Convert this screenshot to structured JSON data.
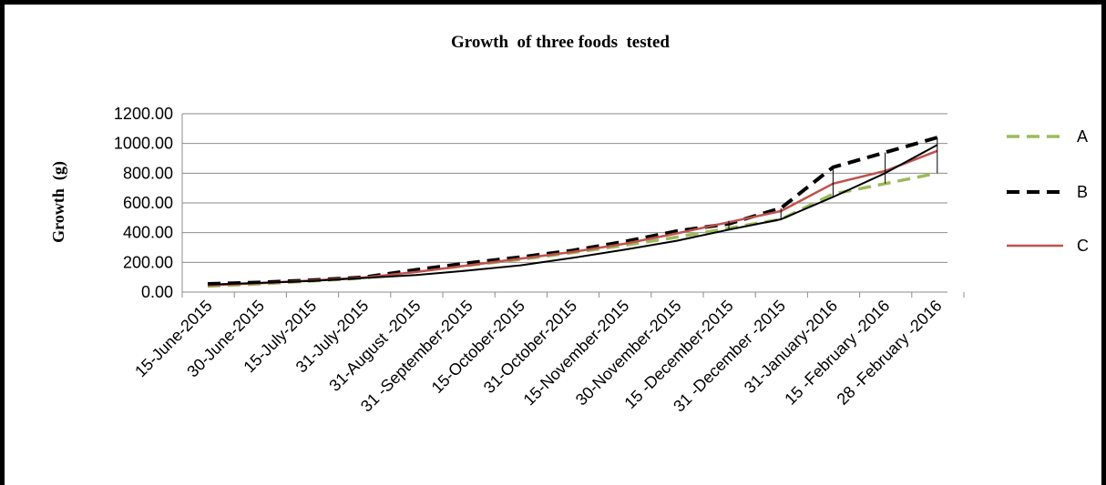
{
  "chart_data": {
    "type": "line",
    "title": "Growth  of three foods  tested",
    "xlabel": "",
    "ylabel": "Growth  (g)",
    "ylim": [
      0,
      1200
    ],
    "yticks": [
      "0.00",
      "200.00",
      "400.00",
      "600.00",
      "800.00",
      "1000.00",
      "1200.00"
    ],
    "grid": true,
    "legend_position": "right",
    "categories": [
      "15-June-2015",
      "30-June-2015",
      "15-July-2015",
      "31-July-2015",
      "31-August -2015",
      "31 -September-2015",
      "15-October-2015",
      "31-October-2015",
      "15-November-2015",
      "30-November-2015",
      "15 -December-2015",
      "31 -December -2015",
      "31-January-2016",
      "15 -February -2016",
      "28 -February -2016"
    ],
    "series": [
      {
        "name": "A",
        "color": "#9BBB59",
        "dash": "dashed",
        "values": [
          40,
          55,
          75,
          95,
          140,
          180,
          220,
          265,
          315,
          370,
          430,
          490,
          660,
          730,
          800
        ]
      },
      {
        "name": "B",
        "color": "#000000",
        "dash": "dashed",
        "values": [
          55,
          65,
          80,
          100,
          150,
          195,
          235,
          280,
          340,
          410,
          460,
          565,
          840,
          940,
          1040
        ]
      },
      {
        "name": "C",
        "color": "#C0504D",
        "dash": "solid",
        "values": [
          45,
          60,
          78,
          98,
          135,
          180,
          225,
          270,
          325,
          395,
          470,
          545,
          730,
          815,
          950
        ]
      },
      {
        "name": "",
        "color": "#000000",
        "dash": "solid",
        "values": [
          50,
          62,
          75,
          95,
          115,
          145,
          180,
          230,
          285,
          345,
          420,
          490,
          640,
          800,
          990
        ]
      }
    ],
    "error_bars": [
      {
        "category_index": 10,
        "low": 420,
        "high": 480
      },
      {
        "category_index": 11,
        "low": 490,
        "high": 565
      },
      {
        "category_index": 12,
        "low": 640,
        "high": 840
      },
      {
        "category_index": 13,
        "low": 730,
        "high": 940
      },
      {
        "category_index": 14,
        "low": 800,
        "high": 1040
      }
    ]
  }
}
